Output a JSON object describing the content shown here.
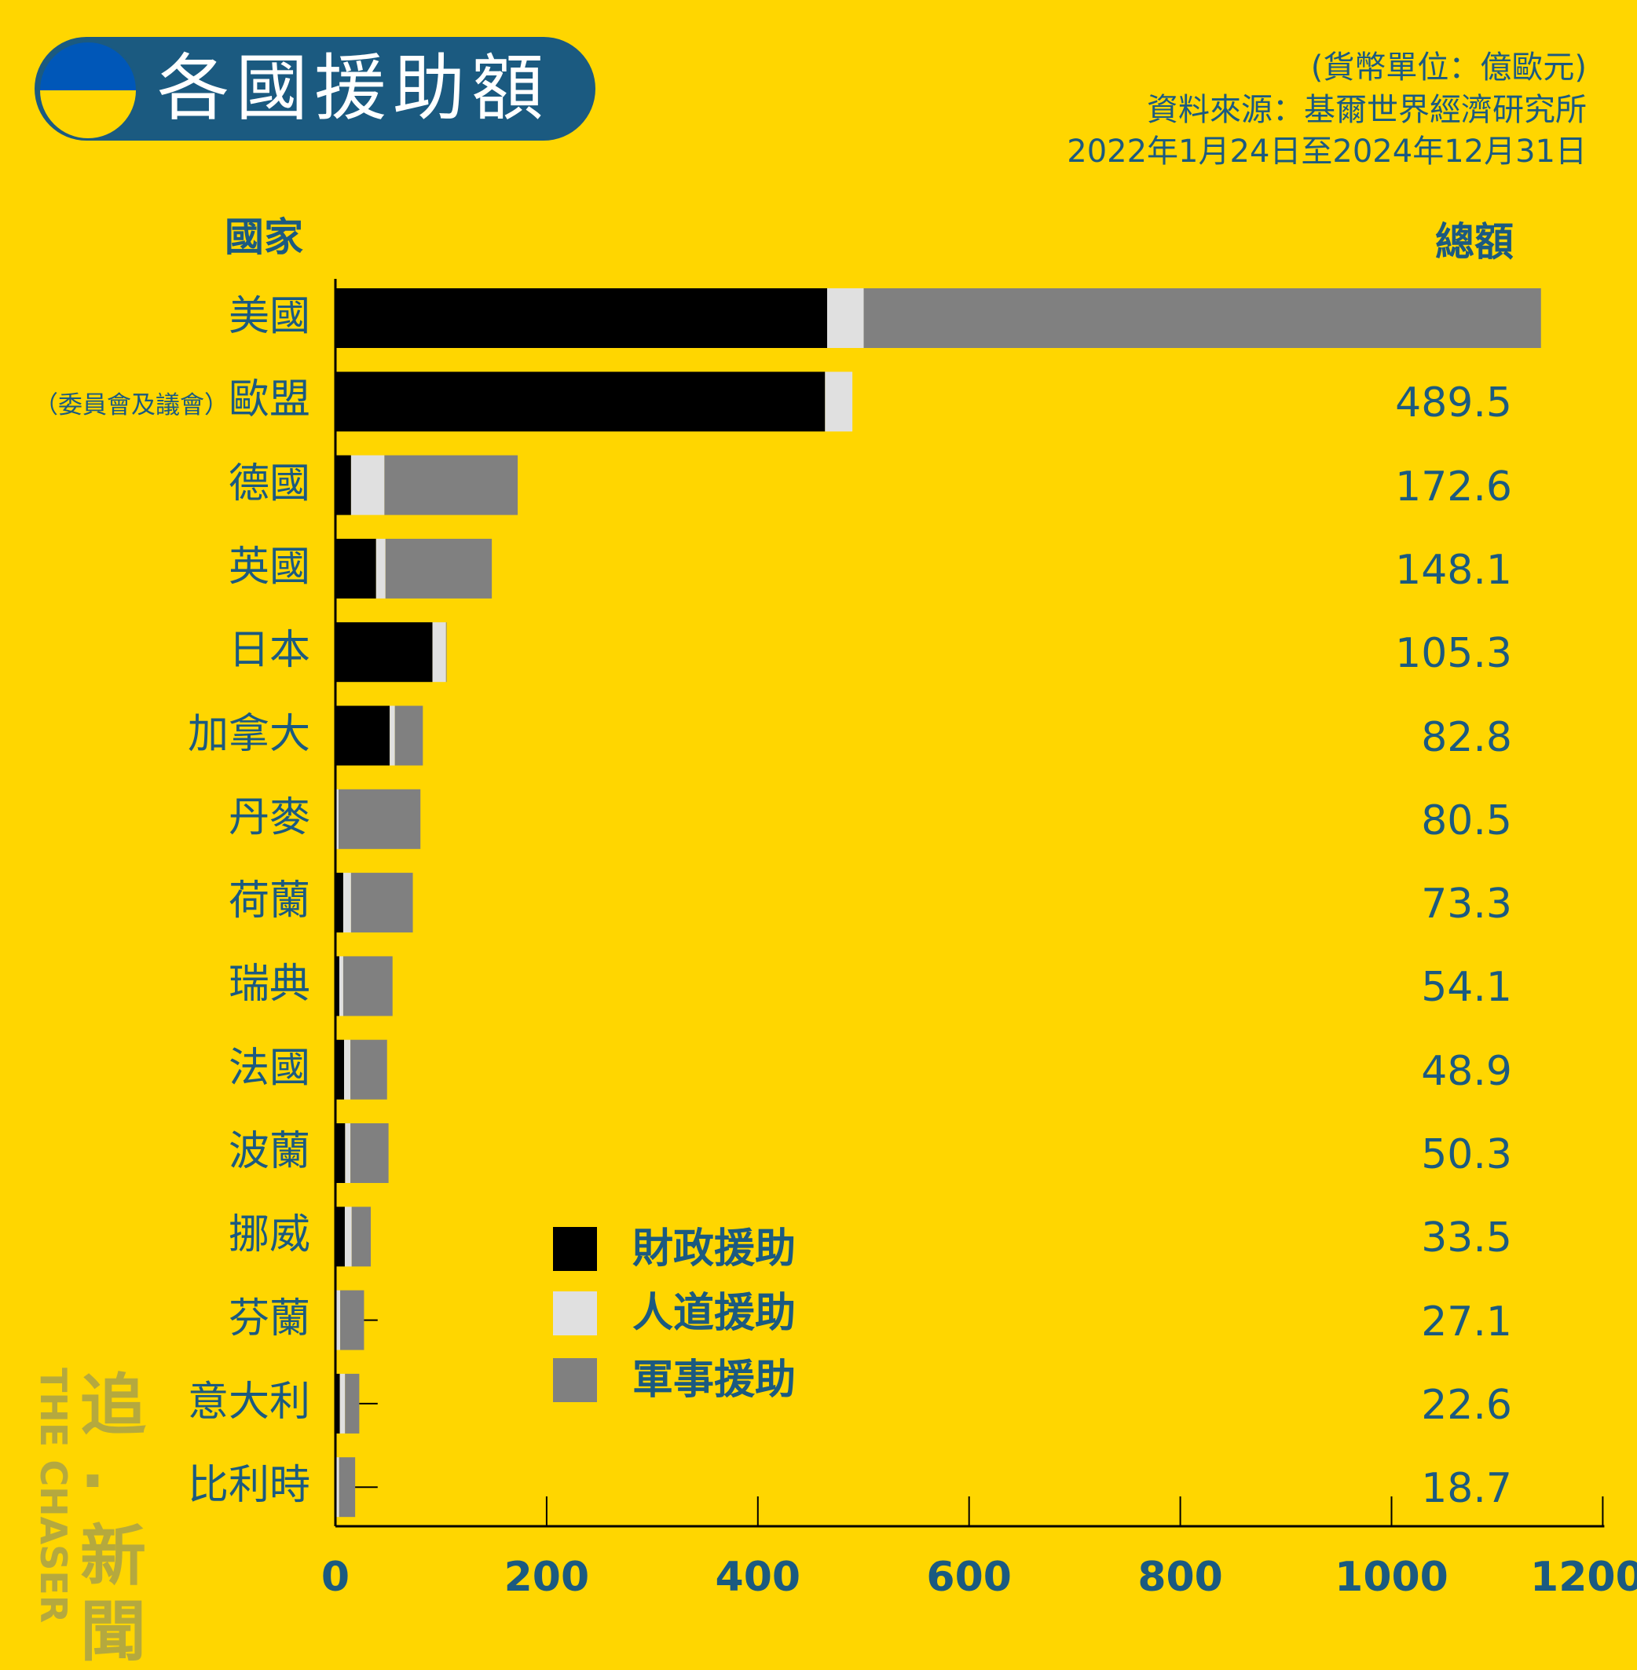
{
  "title": "各國援助額",
  "notes": {
    "unit": "(貨幣單位：億歐元)",
    "source": "資料來源：基爾世界經濟研究所",
    "period": "2022年1月24日至2024年12月31日"
  },
  "headers": {
    "country": "國家",
    "total": "總額"
  },
  "watermark": {
    "cn": "追·新聞",
    "en": "THE CHASER"
  },
  "colors": {
    "background": "#FFD600",
    "financial": "#000000",
    "humanitarian": "#E0E0E0",
    "military": "#808080",
    "text": "#1B5A80"
  },
  "chart_data": {
    "type": "bar",
    "orientation": "horizontal",
    "stacked": true,
    "title": "各國援助額",
    "xlim": [
      0,
      1200
    ],
    "xticks": [
      "0",
      "200",
      "400",
      "600",
      "800",
      "1000",
      "1200"
    ],
    "grid": false,
    "legend_position": "bottom-center",
    "categories": [
      "美國",
      "歐盟",
      "德國",
      "英國",
      "日本",
      "加拿大",
      "丹麥",
      "荷蘭",
      "瑞典",
      "法國",
      "波蘭",
      "挪威",
      "芬蘭",
      "意大利",
      "比利時"
    ],
    "category_prefix": {
      "歐盟": "（委員會及議會）"
    },
    "totals": [
      "1141.5",
      "489.5",
      "172.6",
      "148.1",
      "105.3",
      "82.8",
      "80.5",
      "73.3",
      "54.1",
      "48.9",
      "50.3",
      "33.5",
      "27.1",
      "22.6",
      "18.7"
    ],
    "series": [
      {
        "name": "財政援助",
        "color": "#000000",
        "values": [
          465.6,
          463.6,
          14.8,
          38.5,
          91.9,
          51.4,
          1.0,
          7.4,
          3.7,
          8.2,
          9.2,
          8.9,
          1.0,
          4.2,
          1.0
        ]
      },
      {
        "name": "人道援助",
        "color": "#E0E0E0",
        "values": [
          34.6,
          25.9,
          31.6,
          8.9,
          12.8,
          4.9,
          2.0,
          7.4,
          3.7,
          6.0,
          5.0,
          6.5,
          3.5,
          4.9,
          2.5
        ]
      },
      {
        "name": "軍事援助",
        "color": "#808080",
        "values": [
          641.3,
          0,
          126.2,
          100.7,
          0.6,
          26.5,
          77.5,
          58.5,
          46.7,
          34.7,
          36.1,
          18.1,
          22.6,
          13.5,
          15.2
        ]
      }
    ]
  }
}
